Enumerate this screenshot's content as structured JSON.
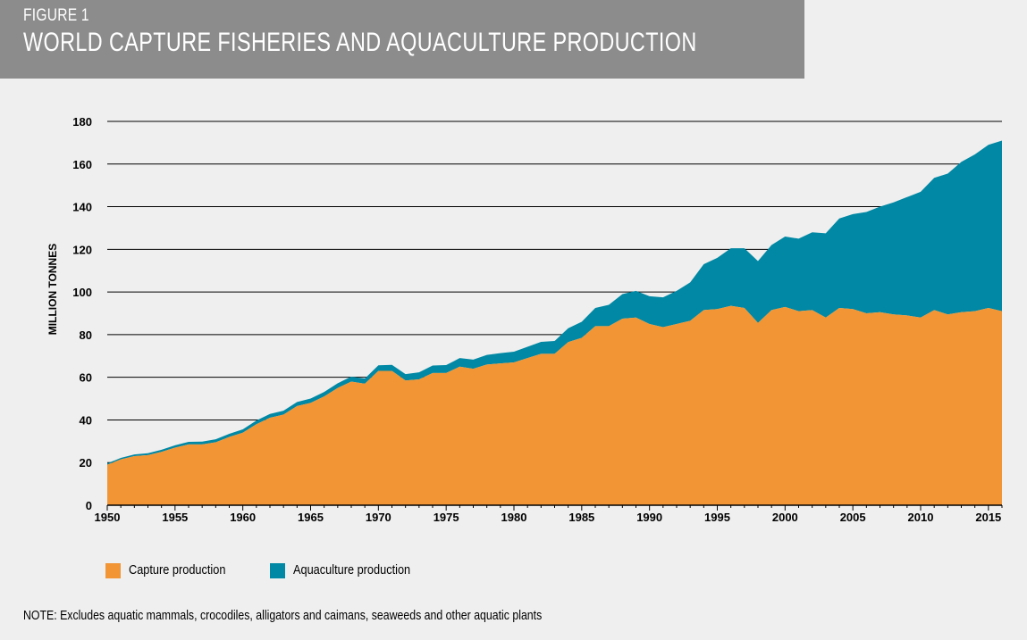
{
  "figure": {
    "label": "FIGURE 1",
    "title": "WORLD CAPTURE FISHERIES AND AQUACULTURE PRODUCTION"
  },
  "note": "NOTE: Excludes aquatic mammals, crocodiles, alligators and caimans, seaweeds and other aquatic plants",
  "chart_data": {
    "type": "area",
    "stacked": true,
    "title": "WORLD CAPTURE FISHERIES AND AQUACULTURE PRODUCTION",
    "ylabel": "MILLION TONNES",
    "xlabel": "",
    "ylim": [
      0,
      180
    ],
    "xlim": [
      1950,
      2016
    ],
    "y_ticks": [
      0,
      20,
      40,
      60,
      80,
      100,
      120,
      140,
      160,
      180
    ],
    "x_ticks": [
      1950,
      1955,
      1960,
      1965,
      1970,
      1975,
      1980,
      1985,
      1990,
      1995,
      2000,
      2005,
      2010,
      2015
    ],
    "grid": "horizontal",
    "legend_position": "bottom-left",
    "x": [
      1950,
      1951,
      1952,
      1953,
      1954,
      1955,
      1956,
      1957,
      1958,
      1959,
      1960,
      1961,
      1962,
      1963,
      1964,
      1965,
      1966,
      1967,
      1968,
      1969,
      1970,
      1971,
      1972,
      1973,
      1974,
      1975,
      1976,
      1977,
      1978,
      1979,
      1980,
      1981,
      1982,
      1983,
      1984,
      1985,
      1986,
      1987,
      1988,
      1989,
      1990,
      1991,
      1992,
      1993,
      1994,
      1995,
      1996,
      1997,
      1998,
      1999,
      2000,
      2001,
      2002,
      2003,
      2004,
      2005,
      2006,
      2007,
      2008,
      2009,
      2010,
      2011,
      2012,
      2013,
      2014,
      2015,
      2016
    ],
    "series": [
      {
        "name": "Capture production",
        "color": "#f19535",
        "values": [
          19,
          21.5,
          23,
          23.5,
          25,
          27,
          28.5,
          28.5,
          29.5,
          32,
          34,
          38,
          41,
          42.5,
          46.5,
          48,
          51,
          55,
          58,
          57,
          63,
          63,
          58.5,
          59,
          62,
          62,
          65,
          64,
          66,
          66.5,
          67,
          69,
          71,
          71,
          76.5,
          78.5,
          84,
          84,
          87.5,
          88,
          85,
          83.5,
          85,
          86.5,
          91.5,
          92,
          93.5,
          92.5,
          85.5,
          91.5,
          93,
          91,
          91.5,
          88,
          92.5,
          92,
          90,
          90.5,
          89.5,
          89,
          88,
          91.5,
          89.5,
          90.5,
          91,
          92.5,
          91
        ]
      },
      {
        "name": "Aquaculture production",
        "color": "#0088a4",
        "values": [
          0.6,
          0.7,
          0.8,
          0.9,
          1,
          1.1,
          1.2,
          1.3,
          1.4,
          1.5,
          1.6,
          1.7,
          1.8,
          1.8,
          1.9,
          2,
          2.1,
          2.2,
          2.3,
          2.4,
          2.6,
          2.8,
          3,
          3.3,
          3.5,
          3.7,
          4,
          4.3,
          4.5,
          4.8,
          5,
          5.3,
          5.6,
          6,
          6.5,
          7.5,
          8.5,
          10,
          11.5,
          12.5,
          13,
          14,
          15.5,
          18,
          21.5,
          24,
          27,
          28,
          29,
          30.5,
          33,
          34,
          36.5,
          39.5,
          42,
          44.5,
          47.5,
          49.5,
          52.5,
          55.5,
          59,
          62,
          66,
          70.5,
          73.5,
          76.5,
          80
        ]
      }
    ]
  }
}
